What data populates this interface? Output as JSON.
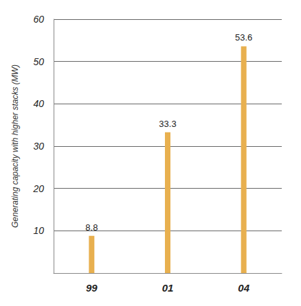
{
  "chart_data": {
    "type": "bar",
    "y_label": "Generating capacity with higher stacks (MW)",
    "categories": [
      "99",
      "01",
      "04"
    ],
    "values": [
      8.8,
      33.3,
      53.6
    ],
    "color": "#e8b04f",
    "ylim": [
      0,
      60
    ],
    "yticks": [
      10,
      20,
      30,
      40,
      50,
      60
    ],
    "grid": true,
    "data_labels": true
  }
}
